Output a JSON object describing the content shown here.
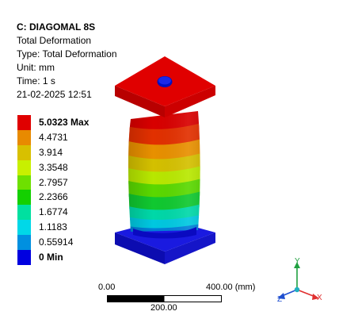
{
  "header": {
    "title": "C: DIAGOMAL 8S",
    "lines": [
      "Total Deformation",
      "Type: Total Deformation",
      "Unit: mm",
      "Time: 1 s",
      "21-02-2025 12:51"
    ]
  },
  "legend": {
    "items": [
      {
        "label": "5.0323 Max",
        "color": "#e00000"
      },
      {
        "label": "4.4731",
        "color": "#e88a00"
      },
      {
        "label": "3.914",
        "color": "#d8c000"
      },
      {
        "label": "3.3548",
        "color": "#c8f000"
      },
      {
        "label": "2.7957",
        "color": "#6ee000"
      },
      {
        "label": "2.2366",
        "color": "#14d000"
      },
      {
        "label": "1.6774",
        "color": "#00e0a0"
      },
      {
        "label": "1.1183",
        "color": "#00d8e8"
      },
      {
        "label": "0.55914",
        "color": "#0090e0"
      },
      {
        "label": "0 Min",
        "color": "#0000e0"
      }
    ]
  },
  "scale_bar": {
    "left_label": "0.00",
    "right_label": "400.00 (mm)",
    "mid_label": "200.00"
  },
  "triad": {
    "y_label": "Y",
    "x_label": "X",
    "z_label": "Z",
    "colors": {
      "x": "#e03030",
      "y": "#20a040",
      "z": "#2050d0",
      "center": "#20b0c0"
    }
  },
  "colors": {
    "top_plate": "#dd0000",
    "base_plate": "#1010d8",
    "hole": "#0018d0"
  }
}
